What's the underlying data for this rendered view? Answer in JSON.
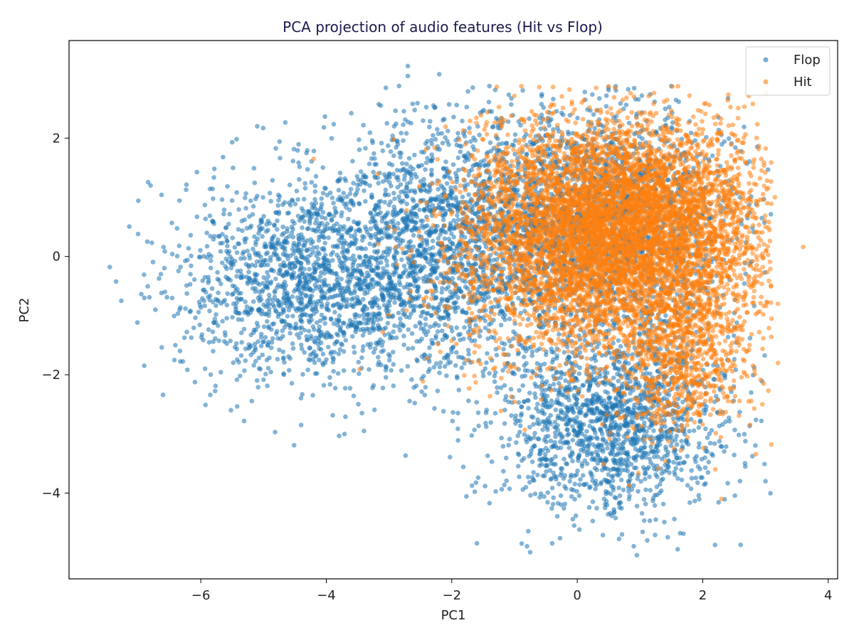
{
  "chart_data": {
    "type": "scatter",
    "title": "PCA projection of audio features (Hit vs Flop)",
    "xlabel": "PC1",
    "ylabel": "PC2",
    "xlim": [
      -8.1,
      4.15
    ],
    "ylim": [
      -5.45,
      3.65
    ],
    "xticks": [
      -6,
      -4,
      -2,
      0,
      2,
      4
    ],
    "yticks": [
      -4,
      -2,
      0,
      2
    ],
    "grid": false,
    "legend_position": "top-right",
    "point_opacity": 0.55,
    "series": [
      {
        "name": "Flop",
        "color": "#1f77b4",
        "clusters": [
          {
            "n": 1500,
            "cx": -4.3,
            "cy": -0.4,
            "sx": 1.05,
            "sy": 0.85
          },
          {
            "n": 1500,
            "cx": -2.3,
            "cy": 0.2,
            "sx": 0.9,
            "sy": 1.1
          },
          {
            "n": 2300,
            "cx": 0.3,
            "cy": 0.6,
            "sx": 1.05,
            "sy": 0.95
          },
          {
            "n": 1600,
            "cx": 0.5,
            "cy": -2.8,
            "sx": 0.95,
            "sy": 0.75
          }
        ],
        "points": [
          [
            -7.45,
            -0.18
          ],
          [
            -7.0,
            0.38
          ],
          [
            -6.8,
            1.2
          ],
          [
            -6.9,
            -0.7
          ],
          [
            -2.7,
            3.22
          ],
          [
            -2.2,
            3.08
          ],
          [
            -1.4,
            2.88
          ],
          [
            -3.05,
            2.85
          ],
          [
            -5.1,
            2.2
          ],
          [
            -5.5,
            1.93
          ],
          [
            -2.7,
            3.05
          ],
          [
            0.95,
            -5.05
          ],
          [
            0.9,
            -4.9
          ],
          [
            -0.8,
            -4.9
          ],
          [
            -0.4,
            -4.85
          ],
          [
            -1.6,
            -4.85
          ],
          [
            1.6,
            -4.95
          ],
          [
            3.0,
            -3.8
          ],
          [
            2.25,
            2.35
          ],
          [
            -3.4,
            -2.95
          ],
          [
            -4.4,
            -2.85
          ],
          [
            -0.75,
            -5.0
          ]
        ]
      },
      {
        "name": "Hit",
        "color": "#ff7f0e",
        "clusters": [
          {
            "n": 5200,
            "cx": 0.9,
            "cy": 0.45,
            "sx": 1.05,
            "sy": 0.9
          },
          {
            "n": 1400,
            "cx": -0.6,
            "cy": 0.2,
            "sx": 0.85,
            "sy": 1.0
          },
          {
            "n": 800,
            "cx": 1.6,
            "cy": -1.7,
            "sx": 0.55,
            "sy": 0.7
          }
        ],
        "points": [
          [
            3.6,
            0.16
          ],
          [
            3.2,
            -0.8
          ],
          [
            3.2,
            -1.8
          ],
          [
            2.3,
            -4.1
          ],
          [
            3.0,
            0.5
          ],
          [
            3.15,
            1.0
          ],
          [
            0.3,
            2.85
          ],
          [
            0.6,
            2.85
          ],
          [
            2.2,
            -3.6
          ],
          [
            2.95,
            -2.5
          ],
          [
            -4.2,
            1.65
          ],
          [
            -3.0,
            0.5
          ]
        ]
      }
    ]
  }
}
